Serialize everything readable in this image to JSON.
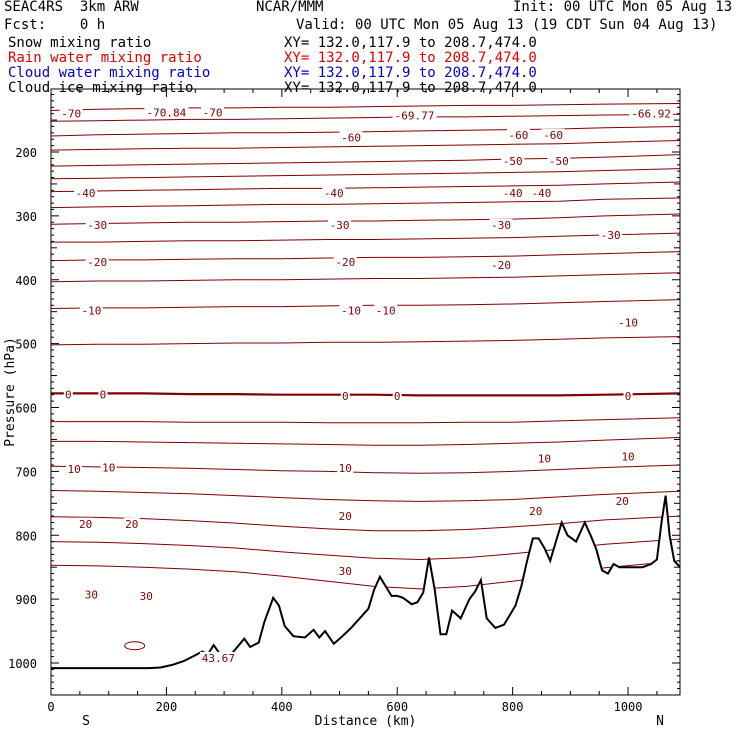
{
  "header": {
    "line1_left": "SEAC4RS  3km ARW",
    "line1_center": "NCAR/MMM",
    "line1_right": "Init: 00 UTC Mon 05 Aug 13",
    "line2_left": "Fcst:    0 h",
    "line2_right": "Valid: 00 UTC Mon 05 Aug 13 (19 CDT Sun 04 Aug 13)"
  },
  "fields": [
    {
      "label": "Snow mixing ratio",
      "xy": "XY= 132.0,117.9 to 208.7,474.0",
      "color": "#000000"
    },
    {
      "label": "Rain water mixing ratio",
      "xy": "XY= 132.0,117.9 to 208.7,474.0",
      "color": "#e00000"
    },
    {
      "label": "Cloud water mixing ratio",
      "xy": "XY= 132.0,117.9 to 208.7,474.0",
      "color": "#0000cc"
    },
    {
      "label": "Cloud ice mixing ratio",
      "xy": "XY= 132.0,117.9 to 208.7,474.0",
      "color": "#000000"
    }
  ],
  "chart_data": {
    "type": "line",
    "xlabel": "Distance (km)",
    "ylabel": "Pressure (hPa)",
    "xlim": [
      0,
      1090
    ],
    "ylim": [
      1050,
      100
    ],
    "xticks": [
      0,
      200,
      400,
      600,
      800,
      1000
    ],
    "yticks": [
      200,
      300,
      400,
      500,
      600,
      700,
      800,
      900,
      1000
    ],
    "x_endpoints": {
      "left": "S",
      "right": "N"
    },
    "contour_color": "#800000",
    "isotherms": [
      {
        "t": -70,
        "p": [
          135,
          133,
          132,
          131,
          131,
          130,
          130,
          129,
          128,
          127,
          127,
          126,
          125,
          124
        ]
      },
      {
        "t": -65,
        "p": [
          152,
          151,
          150,
          149,
          149,
          148,
          147,
          146,
          145,
          145,
          144,
          143,
          142,
          141
        ]
      },
      {
        "t": -60,
        "p": [
          175,
          173,
          172,
          171,
          170,
          170,
          169,
          168,
          167,
          166,
          165,
          164,
          162,
          160
        ]
      },
      {
        "t": -55,
        "p": [
          197,
          196,
          195,
          194,
          194,
          193,
          192,
          191,
          190,
          189,
          188,
          187,
          185,
          182
        ]
      },
      {
        "t": -50,
        "p": [
          222,
          221,
          220,
          219,
          218,
          217,
          216,
          215,
          214,
          213,
          211,
          210,
          208,
          204
        ]
      },
      {
        "t": -45,
        "p": [
          242,
          241,
          240,
          239,
          238,
          237,
          236,
          235,
          234,
          233,
          232,
          231,
          229,
          226
        ]
      },
      {
        "t": -40,
        "p": [
          262,
          261,
          260,
          259,
          258,
          257,
          257,
          256,
          255,
          254,
          253,
          252,
          250,
          247
        ]
      },
      {
        "t": -35,
        "p": [
          287,
          286,
          285,
          284,
          283,
          282,
          282,
          281,
          280,
          279,
          278,
          277,
          274,
          272
        ]
      },
      {
        "t": -30,
        "p": [
          313,
          312,
          311,
          310,
          310,
          309,
          308,
          308,
          307,
          306,
          305,
          303,
          300,
          297
        ]
      },
      {
        "t": -25,
        "p": [
          341,
          341,
          340,
          339,
          339,
          338,
          337,
          337,
          336,
          335,
          334,
          332,
          330,
          327
        ]
      },
      {
        "t": -20,
        "p": [
          370,
          369,
          369,
          368,
          367,
          367,
          366,
          365,
          365,
          364,
          363,
          361,
          359,
          356
        ]
      },
      {
        "t": -15,
        "p": [
          403,
          402,
          402,
          401,
          400,
          400,
          399,
          398,
          398,
          397,
          396,
          394,
          392,
          389
        ]
      },
      {
        "t": -10,
        "p": [
          445,
          444,
          444,
          443,
          442,
          442,
          441,
          440,
          440,
          439,
          438,
          436,
          434,
          431
        ]
      },
      {
        "t": -5,
        "p": [
          502,
          501,
          501,
          500,
          499,
          499,
          498,
          498,
          497,
          496,
          495,
          493,
          491,
          489
        ]
      },
      {
        "t": 0,
        "p": [
          578,
          578,
          578,
          579,
          579,
          580,
          580,
          580,
          581,
          581,
          581,
          581,
          580,
          578
        ]
      },
      {
        "t": 5,
        "p": [
          622,
          622,
          622,
          623,
          623,
          623,
          624,
          624,
          624,
          623,
          623,
          621,
          619,
          616
        ]
      },
      {
        "t": 10,
        "p": [
          653,
          653,
          654,
          655,
          656,
          657,
          658,
          659,
          659,
          658,
          656,
          654,
          651,
          647
        ]
      },
      {
        "t": 15,
        "p": [
          692,
          693,
          694,
          695,
          697,
          699,
          700,
          702,
          703,
          702,
          700,
          697,
          694,
          690
        ]
      },
      {
        "t": 20,
        "p": [
          730,
          731,
          733,
          735,
          738,
          741,
          744,
          746,
          747,
          746,
          744,
          740,
          736,
          731
        ]
      },
      {
        "t": 25,
        "p": [
          771,
          772,
          774,
          777,
          781,
          786,
          790,
          793,
          793,
          791,
          787,
          782,
          776,
          770
        ]
      },
      {
        "t": 30,
        "p": [
          810,
          811,
          813,
          816,
          820,
          826,
          831,
          836,
          838,
          835,
          829,
          822,
          814,
          806
        ]
      },
      {
        "t": 35,
        "p": [
          847,
          848,
          850,
          853,
          857,
          864,
          872,
          880,
          884,
          880,
          872,
          862,
          851,
          840
        ]
      }
    ],
    "isotherm_x": [
      0,
      80,
      160,
      240,
      320,
      400,
      480,
      560,
      640,
      720,
      800,
      880,
      960,
      1090
    ],
    "contour_labels": [
      {
        "x": 35,
        "p": 140,
        "text": "-70"
      },
      {
        "x": 200,
        "p": 138,
        "text": "-70.84"
      },
      {
        "x": 280,
        "p": 138,
        "text": "-70"
      },
      {
        "x": 630,
        "p": 143,
        "text": "-69.77"
      },
      {
        "x": 1040,
        "p": 140,
        "text": "-66.92"
      },
      {
        "x": 520,
        "p": 177,
        "text": "-60"
      },
      {
        "x": 810,
        "p": 173,
        "text": "-60"
      },
      {
        "x": 870,
        "p": 173,
        "text": "-60"
      },
      {
        "x": 800,
        "p": 214,
        "text": "-50"
      },
      {
        "x": 880,
        "p": 214,
        "text": "-50"
      },
      {
        "x": 60,
        "p": 264,
        "text": "-40"
      },
      {
        "x": 490,
        "p": 264,
        "text": "-40"
      },
      {
        "x": 800,
        "p": 264,
        "text": "-40"
      },
      {
        "x": 850,
        "p": 264,
        "text": "-40"
      },
      {
        "x": 80,
        "p": 314,
        "text": "-30"
      },
      {
        "x": 500,
        "p": 314,
        "text": "-30"
      },
      {
        "x": 780,
        "p": 314,
        "text": "-30"
      },
      {
        "x": 970,
        "p": 330,
        "text": "-30"
      },
      {
        "x": 80,
        "p": 372,
        "text": "-20"
      },
      {
        "x": 510,
        "p": 372,
        "text": "-20"
      },
      {
        "x": 780,
        "p": 377,
        "text": "-20"
      },
      {
        "x": 70,
        "p": 448,
        "text": "-10"
      },
      {
        "x": 520,
        "p": 448,
        "text": "-10"
      },
      {
        "x": 580,
        "p": 448,
        "text": "-10"
      },
      {
        "x": 1000,
        "p": 467,
        "text": "-10"
      },
      {
        "x": 30,
        "p": 580,
        "text": "0"
      },
      {
        "x": 90,
        "p": 580,
        "text": "0"
      },
      {
        "x": 510,
        "p": 582,
        "text": "0"
      },
      {
        "x": 600,
        "p": 582,
        "text": "0"
      },
      {
        "x": 1000,
        "p": 582,
        "text": "0"
      },
      {
        "x": 40,
        "p": 696,
        "text": "10"
      },
      {
        "x": 100,
        "p": 694,
        "text": "10"
      },
      {
        "x": 510,
        "p": 695,
        "text": "10"
      },
      {
        "x": 855,
        "p": 680,
        "text": "10"
      },
      {
        "x": 1000,
        "p": 677,
        "text": "10"
      },
      {
        "x": 60,
        "p": 782,
        "text": "20"
      },
      {
        "x": 140,
        "p": 782,
        "text": "20"
      },
      {
        "x": 510,
        "p": 770,
        "text": "20"
      },
      {
        "x": 840,
        "p": 762,
        "text": "20"
      },
      {
        "x": 990,
        "p": 746,
        "text": "20"
      },
      {
        "x": 70,
        "p": 893,
        "text": "30"
      },
      {
        "x": 165,
        "p": 895,
        "text": "30"
      },
      {
        "x": 510,
        "p": 856,
        "text": "30"
      },
      {
        "x": 290,
        "p": 992,
        "text": "43.67"
      }
    ],
    "terrain": {
      "x": [
        0,
        170,
        190,
        210,
        230,
        250,
        262,
        272,
        282,
        292,
        305,
        320,
        335,
        345,
        360,
        370,
        385,
        395,
        405,
        420,
        440,
        455,
        465,
        475,
        490,
        505,
        520,
        535,
        550,
        560,
        570,
        580,
        590,
        600,
        610,
        625,
        635,
        645,
        655,
        665,
        675,
        685,
        695,
        710,
        725,
        735,
        745,
        755,
        770,
        785,
        795,
        805,
        815,
        825,
        835,
        845,
        855,
        865,
        875,
        885,
        895,
        910,
        925,
        935,
        945,
        955,
        965,
        975,
        985,
        995,
        1010,
        1025,
        1040,
        1050,
        1058,
        1065,
        1072,
        1080,
        1090
      ],
      "p": [
        1008,
        1008,
        1007,
        1003,
        997,
        988,
        982,
        986,
        972,
        985,
        994,
        978,
        962,
        975,
        968,
        935,
        898,
        910,
        942,
        958,
        960,
        948,
        960,
        950,
        970,
        958,
        945,
        930,
        915,
        885,
        865,
        880,
        895,
        895,
        898,
        908,
        905,
        890,
        835,
        885,
        955,
        955,
        918,
        930,
        900,
        888,
        870,
        930,
        945,
        940,
        925,
        910,
        880,
        840,
        805,
        805,
        820,
        840,
        810,
        780,
        800,
        810,
        780,
        800,
        822,
        855,
        860,
        845,
        850,
        850,
        850,
        850,
        845,
        838,
        780,
        738,
        800,
        840,
        850
      ]
    },
    "ground_level_p": 1008
  }
}
